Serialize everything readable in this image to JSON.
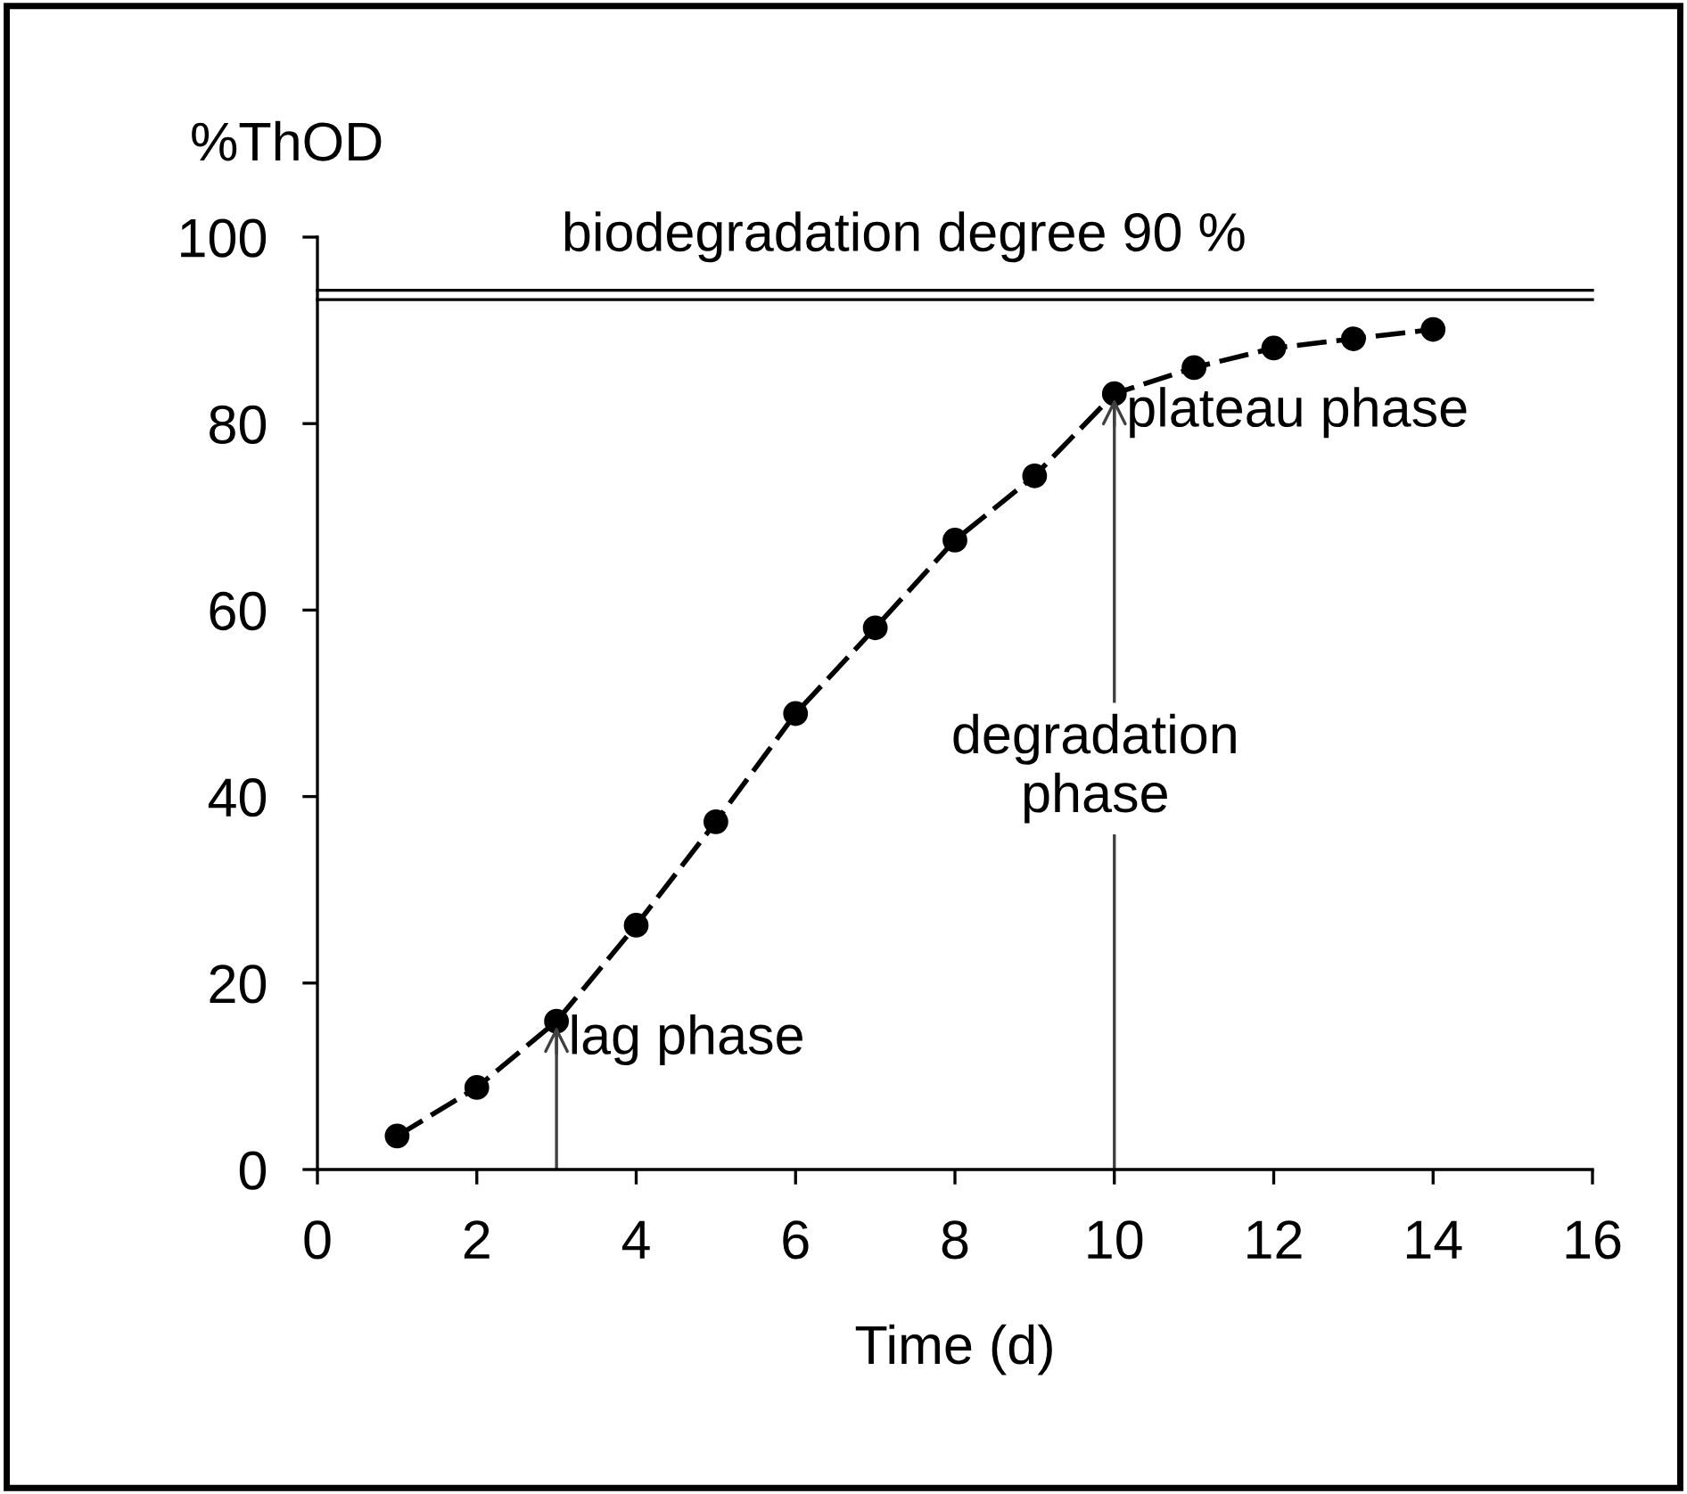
{
  "chart_data": {
    "type": "line",
    "xlabel": "Time (d)",
    "ylabel": "%ThOD",
    "x": [
      1,
      2,
      3,
      4,
      5,
      6,
      7,
      8,
      9,
      10,
      11,
      12,
      13,
      14
    ],
    "series": [
      {
        "color": "#000000",
        "values": [
          3.6,
          8.8,
          15.9,
          26.2,
          37.3,
          48.9,
          58.1,
          67.5,
          74.4,
          83.2,
          86.0,
          88.1,
          89.1,
          90.1
        ]
      }
    ],
    "marker": "circle",
    "line_style": "dashed",
    "grid": false,
    "legend": false,
    "xlim": [
      0,
      16
    ],
    "xticks": [
      0,
      2,
      4,
      6,
      8,
      10,
      12,
      14,
      16
    ],
    "ylim": [
      0,
      100
    ],
    "yticks": [
      0,
      20,
      40,
      60,
      80,
      100
    ],
    "ref_lines": [
      {
        "axis": "y",
        "value": 94.3,
        "label": "biodegradation degree 90 %",
        "color": "#000000"
      },
      {
        "axis": "y",
        "value": 93.3,
        "color": "#000000"
      },
      {
        "axis": "x",
        "value": 3,
        "label": "lag phase",
        "color": "#404040"
      },
      {
        "axis": "x",
        "value": 10,
        "label": "plateau phase",
        "color": "#404040"
      }
    ],
    "annotations": [
      "degradation\nphase"
    ]
  }
}
